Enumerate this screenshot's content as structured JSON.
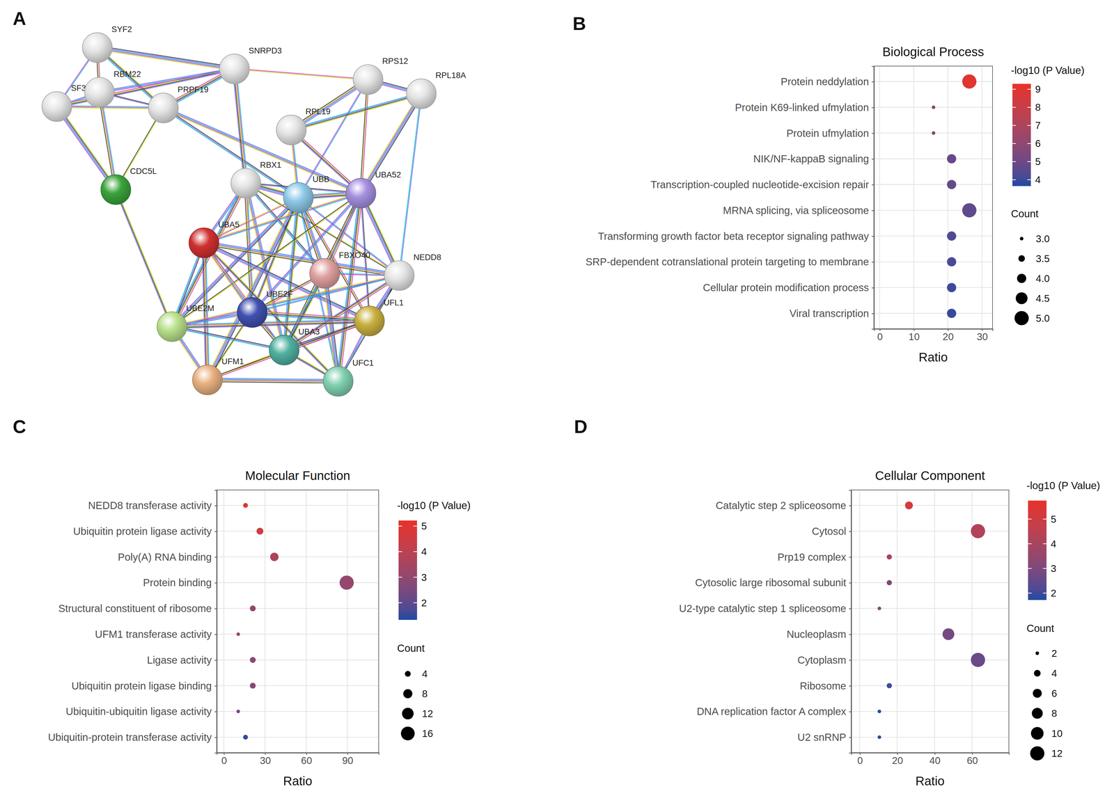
{
  "chart_data": [
    {
      "type": "network",
      "panel": "A",
      "nodes": [
        {
          "label": "SYF2",
          "color": "#e4e4e4"
        },
        {
          "label": "SNRPD3",
          "color": "#e4e4e4"
        },
        {
          "label": "RPS12",
          "color": "#e4e4e4"
        },
        {
          "label": "RPL18A",
          "color": "#e4e4e4"
        },
        {
          "label": "SF3A1",
          "color": "#e4e4e4"
        },
        {
          "label": "RBM22",
          "color": "#e4e4e4"
        },
        {
          "label": "PRPF19",
          "color": "#e4e4e4"
        },
        {
          "label": "RPL19",
          "color": "#e4e4e4"
        },
        {
          "label": "CDC5L",
          "color": "#3aa33a"
        },
        {
          "label": "RBX1",
          "color": "#e4e4e4"
        },
        {
          "label": "UBB",
          "color": "#8ec8e8"
        },
        {
          "label": "UBA52",
          "color": "#a58fe0"
        },
        {
          "label": "UBA5",
          "color": "#d03030"
        },
        {
          "label": "FBXO40",
          "color": "#e0a0a0"
        },
        {
          "label": "NEDD8",
          "color": "#e4e4e4"
        },
        {
          "label": "UBE2F",
          "color": "#4050b0"
        },
        {
          "label": "UBE2M",
          "color": "#b8e08a"
        },
        {
          "label": "UFL1",
          "color": "#c8b040"
        },
        {
          "label": "UBA3",
          "color": "#50b0a0"
        },
        {
          "label": "UFM1",
          "color": "#e8b080"
        },
        {
          "label": "UFC1",
          "color": "#80d0b0"
        }
      ],
      "edges": [
        [
          "SYF2",
          "SF3A1"
        ],
        [
          "SYF2",
          "RBM22"
        ],
        [
          "SYF2",
          "PRPF19"
        ],
        [
          "SYF2",
          "SNRPD3"
        ],
        [
          "SF3A1",
          "RBM22"
        ],
        [
          "SF3A1",
          "PRPF19"
        ],
        [
          "SF3A1",
          "SNRPD3"
        ],
        [
          "SF3A1",
          "CDC5L"
        ],
        [
          "RBM22",
          "PRPF19"
        ],
        [
          "RBM22",
          "SNRPD3"
        ],
        [
          "RBM22",
          "CDC5L"
        ],
        [
          "PRPF19",
          "SNRPD3"
        ],
        [
          "PRPF19",
          "CDC5L"
        ],
        [
          "PRPF19",
          "UBB"
        ],
        [
          "PRPF19",
          "UBA52"
        ],
        [
          "SNRPD3",
          "RBX1"
        ],
        [
          "SNRPD3",
          "RPS12"
        ],
        [
          "CDC5L",
          "UBE2M"
        ],
        [
          "RPS12",
          "RPL18A"
        ],
        [
          "RPS12",
          "RPL19"
        ],
        [
          "RPS12",
          "UBB"
        ],
        [
          "RPS12",
          "UBA52"
        ],
        [
          "RPL18A",
          "RPL19"
        ],
        [
          "RPL18A",
          "UBA52"
        ],
        [
          "RPL18A",
          "NEDD8"
        ],
        [
          "RPL19",
          "UBB"
        ],
        [
          "RPL19",
          "UBA52"
        ],
        [
          "RBX1",
          "UBB"
        ],
        [
          "RBX1",
          "UBA52"
        ],
        [
          "RBX1",
          "UBA5"
        ],
        [
          "RBX1",
          "UBE2F"
        ],
        [
          "RBX1",
          "UBE2M"
        ],
        [
          "RBX1",
          "NEDD8"
        ],
        [
          "RBX1",
          "FBXO40"
        ],
        [
          "RBX1",
          "UBA3"
        ],
        [
          "UBB",
          "UBA52"
        ],
        [
          "UBB",
          "UBA5"
        ],
        [
          "UBB",
          "UBE2F"
        ],
        [
          "UBB",
          "UBE2M"
        ],
        [
          "UBB",
          "FBXO40"
        ],
        [
          "UBB",
          "NEDD8"
        ],
        [
          "UBB",
          "UFL1"
        ],
        [
          "UBB",
          "UBA3"
        ],
        [
          "UBB",
          "UFM1"
        ],
        [
          "UBB",
          "UFC1"
        ],
        [
          "UBA52",
          "UBA5"
        ],
        [
          "UBA52",
          "FBXO40"
        ],
        [
          "UBA52",
          "NEDD8"
        ],
        [
          "UBA52",
          "UFL1"
        ],
        [
          "UBA52",
          "UBE2F"
        ],
        [
          "UBA52",
          "UBA3"
        ],
        [
          "UBA52",
          "UFC1"
        ],
        [
          "UBA52",
          "UBE2M"
        ],
        [
          "UBA5",
          "UBE2M"
        ],
        [
          "UBA5",
          "UBE2F"
        ],
        [
          "UBA5",
          "UFM1"
        ],
        [
          "UBA5",
          "UBA3"
        ],
        [
          "UBA5",
          "UFC1"
        ],
        [
          "UBA5",
          "UFL1"
        ],
        [
          "UBA5",
          "NEDD8"
        ],
        [
          "FBXO40",
          "NEDD8"
        ],
        [
          "FBXO40",
          "UBE2F"
        ],
        [
          "FBXO40",
          "UBA3"
        ],
        [
          "FBXO40",
          "UFC1"
        ],
        [
          "NEDD8",
          "UBE2F"
        ],
        [
          "NEDD8",
          "UBE2M"
        ],
        [
          "NEDD8",
          "UBA3"
        ],
        [
          "NEDD8",
          "UFL1"
        ],
        [
          "NEDD8",
          "UFC1"
        ],
        [
          "UBE2F",
          "UBE2M"
        ],
        [
          "UBE2F",
          "UBA3"
        ],
        [
          "UBE2F",
          "UFL1"
        ],
        [
          "UBE2F",
          "UFM1"
        ],
        [
          "UBE2M",
          "UBA3"
        ],
        [
          "UBE2M",
          "UFM1"
        ],
        [
          "UBE2M",
          "UFL1"
        ],
        [
          "UBA3",
          "UFM1"
        ],
        [
          "UBA3",
          "UFC1"
        ],
        [
          "UBA3",
          "UFL1"
        ],
        [
          "UFM1",
          "UFC1"
        ],
        [
          "UFL1",
          "UFC1"
        ],
        [
          "UFL1",
          "UFM1"
        ]
      ]
    },
    {
      "type": "scatter",
      "panel": "B",
      "title": "Biological Process",
      "x_label": "Ratio",
      "orientation": "horizontal",
      "grid": true,
      "categories": [
        "Protein neddylation",
        "Protein K69-linked ufmylation",
        "Protein ufmylation",
        "NIK/NF-kappaB signaling",
        "Transcription-coupled nucleotide-excision repair",
        "MRNA splicing, via spliceosome",
        "Transforming growth factor beta receptor signaling pathway",
        "SRP-dependent cotranslational protein targeting to membrane",
        "Cellular protein modification process",
        "Viral transcription"
      ],
      "values": [
        26.3,
        15.8,
        15.8,
        21.1,
        21.1,
        26.3,
        21.1,
        21.1,
        21.1,
        21.1
      ],
      "count": [
        5,
        3,
        3,
        4,
        4,
        5,
        4,
        4,
        4,
        4
      ],
      "neg_log10_p": [
        9.0,
        5.7,
        5.7,
        4.8,
        4.8,
        4.6,
        4.3,
        4.2,
        4.0,
        3.9
      ],
      "xlim": [
        -1.7,
        33.1
      ],
      "xticks": [
        0,
        10,
        20,
        30
      ],
      "colorbar": {
        "title": "-log10 (P Value)",
        "range": [
          3.65,
          9.3
        ],
        "ticks": [
          4,
          5,
          6,
          7,
          8,
          9
        ],
        "colors": [
          "#1f4aa0",
          "#e8312a"
        ]
      },
      "size_legend": {
        "title": "Count",
        "ticks": [
          {
            "value": 3,
            "label": "3.0"
          },
          {
            "value": 3.5,
            "label": "3.5"
          },
          {
            "value": 4,
            "label": "4.0"
          },
          {
            "value": 4.5,
            "label": "4.5"
          },
          {
            "value": 5,
            "label": "5.0"
          }
        ]
      }
    },
    {
      "type": "scatter",
      "panel": "C",
      "title": "Molecular Function",
      "x_label": "Ratio",
      "orientation": "horizontal",
      "grid": true,
      "categories": [
        "NEDD8 transferase activity",
        "Ubiquitin protein ligase activity",
        "Poly(A) RNA binding",
        "Protein binding",
        "Structural constituent of ribosome",
        "UFM1 transferase activity",
        "Ligase activity",
        "Ubiquitin protein ligase binding",
        "Ubiquitin-ubiquitin ligase activity",
        "Ubiquitin-protein transferase activity"
      ],
      "values": [
        15.8,
        26.3,
        36.8,
        89.5,
        21.1,
        10.5,
        21.1,
        21.1,
        10.5,
        15.8
      ],
      "count": [
        3,
        5,
        7,
        17,
        4,
        2,
        4,
        4,
        2,
        3
      ],
      "neg_log10_p": [
        5.0,
        4.4,
        3.6,
        3.1,
        3.0,
        3.0,
        2.8,
        2.7,
        2.4,
        1.5
      ],
      "xlim": [
        -5.2,
        112.8
      ],
      "xticks": [
        0,
        30,
        60,
        90
      ],
      "colorbar": {
        "title": "-log10 (P Value)",
        "range": [
          1.33,
          5.22
        ],
        "ticks": [
          2,
          3,
          4,
          5
        ],
        "colors": [
          "#1f4aa0",
          "#e8312a"
        ]
      },
      "size_legend": {
        "title": "Count",
        "ticks": [
          4,
          8,
          12,
          16
        ]
      }
    },
    {
      "type": "scatter",
      "panel": "D",
      "title": "Cellular Component",
      "x_label": "Ratio",
      "orientation": "horizontal",
      "grid": true,
      "categories": [
        "Catalytic step 2 spliceosome",
        "Cytosol",
        "Prp19 complex",
        "Cytosolic large ribosomal subunit",
        "U2-type catalytic step 1 spliceosome",
        "Nucleoplasm",
        "Cytoplasm",
        "Ribosome",
        "DNA replication factor A complex",
        "U2 snRNP"
      ],
      "values": [
        26.3,
        63.2,
        15.8,
        15.8,
        10.5,
        47.4,
        63.2,
        15.8,
        10.5,
        10.5
      ],
      "count": [
        5,
        12,
        3,
        3,
        2,
        9,
        12,
        3,
        2,
        2
      ],
      "neg_log10_p": [
        5.2,
        4.2,
        4.0,
        3.1,
        3.0,
        2.8,
        2.6,
        2.0,
        1.8,
        1.8
      ],
      "xlim": [
        -4.6,
        79.7
      ],
      "xticks": [
        0,
        20,
        40,
        60
      ],
      "colorbar": {
        "title": "-log10 (P Value)",
        "range": [
          1.72,
          5.75
        ],
        "ticks": [
          2,
          3,
          4,
          5
        ],
        "colors": [
          "#1f4aa0",
          "#e8312a"
        ]
      },
      "size_legend": {
        "title": "Count",
        "ticks": [
          2,
          4,
          6,
          8,
          10,
          12
        ]
      }
    }
  ]
}
